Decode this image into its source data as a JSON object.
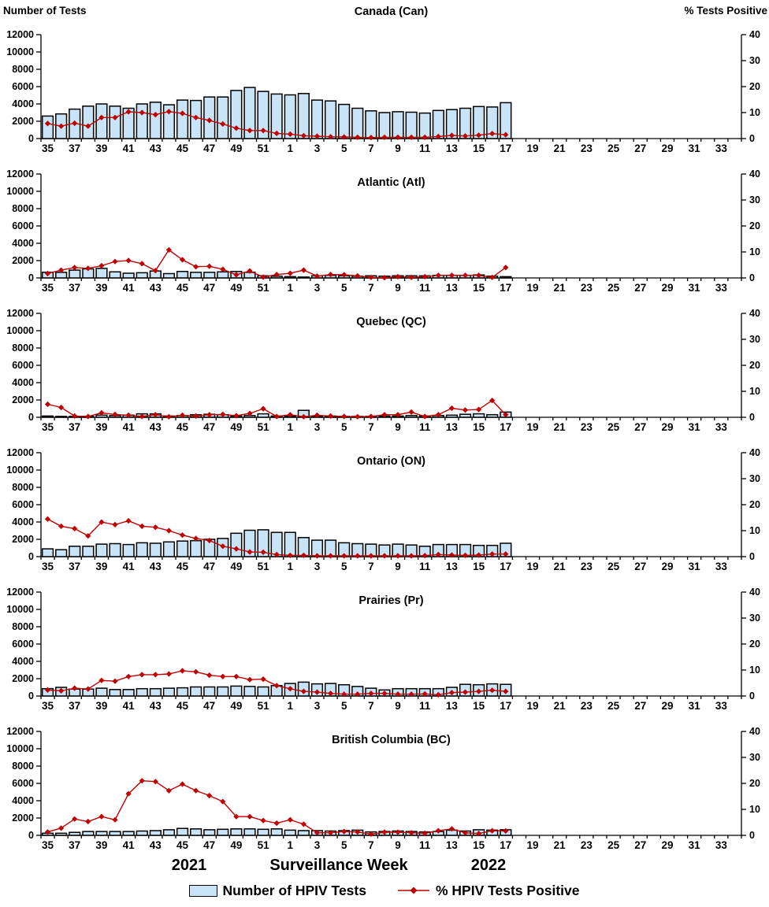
{
  "colors": {
    "bar_fill": "#C8E4F6",
    "bar_stroke": "#000000",
    "line_color": "#C00000",
    "axis_color": "#000000",
    "text_color": "#000000",
    "background": "#FFFFFF"
  },
  "chart_data": {
    "type": "bar",
    "subtype": "bar+line dual-axis, 6 stacked panels",
    "left_axis": {
      "label": "Number of Tests",
      "min": 0,
      "max": 12000,
      "step": 2000
    },
    "right_axis": {
      "label": "% Tests Positive",
      "min": 0,
      "max": 40,
      "step": 10
    },
    "x_axis_title": "Surveillance Week",
    "year_labels": {
      "left": "2021",
      "right": "2022"
    },
    "bars_series_name": "Number of HPIV Tests",
    "line_series_name": "% HPIV Tests Positive",
    "categories_weeks": [
      "35",
      "36",
      "37",
      "38",
      "39",
      "40",
      "41",
      "42",
      "43",
      "44",
      "45",
      "46",
      "47",
      "48",
      "49",
      "50",
      "51",
      "52",
      "1",
      "2",
      "3",
      "4",
      "5",
      "6",
      "7",
      "8",
      "9",
      "10",
      "11",
      "12",
      "13",
      "14",
      "15",
      "16",
      "17",
      "18",
      "19",
      "20",
      "21",
      "22",
      "23",
      "24",
      "25",
      "26",
      "27",
      "28",
      "29",
      "30",
      "31",
      "32",
      "33",
      "34"
    ],
    "x_tick_labels_shown": [
      "35",
      "37",
      "39",
      "41",
      "43",
      "45",
      "47",
      "49",
      "51",
      "1",
      "3",
      "5",
      "7",
      "9",
      "11",
      "13",
      "15",
      "17",
      "19",
      "21",
      "23",
      "25",
      "27",
      "29",
      "31",
      "33"
    ],
    "panels": [
      {
        "title": "Canada (Can)",
        "bars": [
          2600,
          2850,
          3400,
          3750,
          4000,
          3750,
          3500,
          4000,
          4200,
          3900,
          4450,
          4400,
          4800,
          4800,
          5550,
          5900,
          5450,
          5150,
          5050,
          5200,
          4450,
          4350,
          3950,
          3500,
          3200,
          3000,
          3100,
          3050,
          2950,
          3250,
          3350,
          3500,
          3700,
          3650,
          4150
        ],
        "line": [
          5.8,
          4.8,
          5.9,
          4.8,
          8.1,
          8.1,
          10.3,
          10.0,
          9.2,
          10.4,
          9.7,
          8.1,
          7.0,
          5.6,
          4.0,
          3.1,
          3.1,
          2.0,
          1.7,
          1.1,
          0.9,
          0.7,
          0.6,
          0.5,
          0.4,
          0.5,
          0.5,
          0.5,
          0.5,
          0.8,
          1.2,
          1.0,
          1.3,
          1.9,
          1.5
        ]
      },
      {
        "title": "Atlantic (Atl)",
        "bars": [
          650,
          650,
          900,
          1050,
          1100,
          700,
          550,
          600,
          800,
          500,
          750,
          650,
          650,
          700,
          750,
          650,
          250,
          200,
          150,
          100,
          250,
          300,
          250,
          200,
          250,
          200,
          250,
          250,
          250,
          300,
          300,
          300,
          350,
          200,
          150
        ],
        "line": [
          1.7,
          3.0,
          4.0,
          3.7,
          4.7,
          6.3,
          6.7,
          5.5,
          2.8,
          10.8,
          7.0,
          4.3,
          4.5,
          3.3,
          1.2,
          2.7,
          0.3,
          1.3,
          1.8,
          3.0,
          0.7,
          1.3,
          1.2,
          0.8,
          0.2,
          0.1,
          0.5,
          0.2,
          0.5,
          1.0,
          1.0,
          1.0,
          1.0,
          0.2,
          4.0
        ]
      },
      {
        "title": "Quebec (QC)",
        "bars": [
          150,
          100,
          100,
          100,
          250,
          200,
          250,
          400,
          400,
          150,
          200,
          300,
          350,
          300,
          150,
          200,
          400,
          150,
          150,
          800,
          150,
          150,
          100,
          100,
          100,
          150,
          150,
          200,
          150,
          200,
          250,
          350,
          400,
          300,
          600
        ],
        "line": [
          5.0,
          3.8,
          0.5,
          0.3,
          1.7,
          1.1,
          0.8,
          0.3,
          1.0,
          0.2,
          0.8,
          0.5,
          1.0,
          1.1,
          0.6,
          1.5,
          3.3,
          0.3,
          1.0,
          0.2,
          0.8,
          0.5,
          0.3,
          0.2,
          0.3,
          1.0,
          1.0,
          2.0,
          0.3,
          1.0,
          3.5,
          2.8,
          3.0,
          6.5,
          1.0
        ]
      },
      {
        "title": "Ontario (ON)",
        "bars": [
          900,
          800,
          1200,
          1200,
          1450,
          1500,
          1400,
          1600,
          1550,
          1700,
          1800,
          1850,
          2000,
          2100,
          2700,
          3050,
          3100,
          2800,
          2800,
          2200,
          1900,
          1900,
          1600,
          1500,
          1450,
          1350,
          1450,
          1350,
          1200,
          1400,
          1400,
          1400,
          1300,
          1300,
          1550
        ],
        "line": [
          14.5,
          11.7,
          10.8,
          8.0,
          13.3,
          12.3,
          13.8,
          11.7,
          11.3,
          10.0,
          8.3,
          7.0,
          6.2,
          4.0,
          3.0,
          1.8,
          1.7,
          0.8,
          0.5,
          0.5,
          0.3,
          0.3,
          0.3,
          0.3,
          0.3,
          0.3,
          0.3,
          0.3,
          0.4,
          0.8,
          0.6,
          0.5,
          0.6,
          1.0,
          1.0
        ]
      },
      {
        "title": "Prairies (Pr)",
        "bars": [
          850,
          1000,
          800,
          800,
          900,
          750,
          750,
          850,
          850,
          900,
          950,
          1050,
          1050,
          1050,
          1150,
          1100,
          1050,
          1200,
          1450,
          1600,
          1400,
          1450,
          1300,
          1100,
          900,
          700,
          850,
          850,
          850,
          850,
          1000,
          1350,
          1300,
          1400,
          1350
        ],
        "line": [
          2.3,
          2.0,
          3.0,
          2.7,
          6.0,
          5.7,
          7.5,
          8.2,
          8.2,
          8.5,
          9.7,
          9.3,
          8.0,
          7.5,
          7.5,
          6.3,
          6.5,
          4.0,
          2.8,
          1.8,
          1.5,
          1.0,
          0.7,
          0.7,
          1.0,
          1.0,
          0.7,
          0.7,
          0.8,
          0.5,
          1.3,
          1.5,
          1.8,
          2.2,
          1.8
        ]
      },
      {
        "title": "British Columbia (BC)",
        "bars": [
          250,
          250,
          350,
          450,
          450,
          450,
          450,
          500,
          550,
          650,
          800,
          750,
          650,
          700,
          750,
          750,
          700,
          750,
          600,
          550,
          550,
          500,
          550,
          600,
          400,
          450,
          500,
          450,
          400,
          450,
          600,
          500,
          650,
          600,
          650
        ],
        "line": [
          1.3,
          2.8,
          6.3,
          5.3,
          7.2,
          6.0,
          16.0,
          21.0,
          20.7,
          17.2,
          19.7,
          17.2,
          15.3,
          13.0,
          7.2,
          7.2,
          5.7,
          4.7,
          6.0,
          4.3,
          1.0,
          1.0,
          1.5,
          1.3,
          0.5,
          1.2,
          1.2,
          1.0,
          0.8,
          1.8,
          2.5,
          1.0,
          0.7,
          1.8,
          1.7
        ]
      }
    ]
  }
}
